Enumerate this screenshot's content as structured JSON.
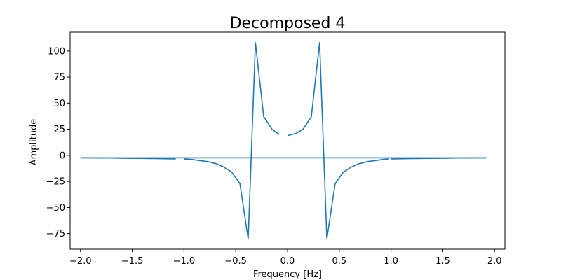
{
  "chart_data": {
    "type": "line",
    "title": "Decomposed 4",
    "xlabel": "Frequency [Hz]",
    "ylabel": "Amplitude",
    "xlim": [
      -2.1,
      2.1
    ],
    "ylim": [
      -90,
      118
    ],
    "xticks": [
      -2.0,
      -1.5,
      -1.0,
      -0.5,
      0.0,
      0.5,
      1.0,
      1.5,
      2.0
    ],
    "xtick_labels": [
      "−2.0",
      "−1.5",
      "−1.0",
      "−0.5",
      "0.0",
      "0.5",
      "1.0",
      "1.5",
      "2.0"
    ],
    "yticks": [
      100,
      75,
      50,
      25,
      0,
      -25,
      -50,
      -75
    ],
    "ytick_labels": [
      "100",
      "75",
      "50",
      "25",
      "0",
      "−25",
      "−50",
      "−75"
    ],
    "grid": false,
    "color": "#1f77b4",
    "series": [
      {
        "segments": [
          {
            "x": [
              -1.0,
              -0.92,
              -0.85,
              -0.77,
              -0.69,
              -0.62,
              -0.54,
              -0.46,
              -0.38,
              -0.31,
              -0.23,
              -0.15,
              -0.08
            ],
            "y": [
              -3.5,
              -4.0,
              -5.0,
              -6.0,
              -8.0,
              -11.0,
              -16.0,
              -27.0,
              -80.0,
              108.0,
              37.0,
              25.0,
              20.0
            ]
          },
          {
            "x": [
              0.0,
              0.08,
              0.15,
              0.23,
              0.31,
              0.38,
              0.46,
              0.54,
              0.62,
              0.69,
              0.77,
              0.85,
              0.92,
              0.98
            ],
            "y": [
              19.0,
              21.0,
              25.0,
              37.0,
              108.0,
              -80.0,
              -27.0,
              -16.0,
              -11.0,
              -8.0,
              -6.0,
              -5.0,
              -4.0,
              -3.5
            ]
          },
          {
            "x": [
              -2.0,
              -1.92,
              -1.85,
              -1.77,
              -1.69,
              -1.62,
              -1.54,
              -1.46,
              -1.38,
              -1.31,
              -1.23,
              -1.15,
              -1.08
            ],
            "y": [
              -2.4,
              -2.4,
              -2.5,
              -2.5,
              -2.6,
              -2.7,
              -2.8,
              -2.9,
              -3.0,
              -3.1,
              -3.2,
              -3.3,
              -3.4
            ]
          },
          {
            "x": [
              1.0,
              1.08,
              1.15,
              1.23,
              1.31,
              1.38,
              1.46,
              1.54,
              1.62,
              1.69,
              1.77,
              1.85,
              1.92
            ],
            "y": [
              -3.4,
              -3.3,
              -3.2,
              -3.1,
              -3.0,
              -2.9,
              -2.8,
              -2.7,
              -2.6,
              -2.5,
              -2.5,
              -2.4,
              -2.4
            ]
          },
          {
            "x": [
              -2.0,
              1.92
            ],
            "y": [
              -2.4,
              -2.4
            ]
          }
        ]
      }
    ]
  }
}
